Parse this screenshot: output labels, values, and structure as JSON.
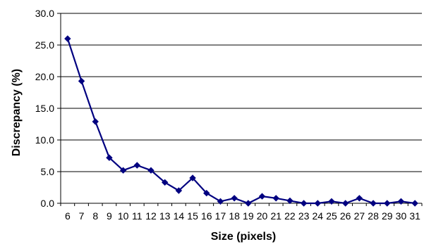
{
  "chart_data": {
    "type": "line",
    "xlabel": "Size (pixels)",
    "ylabel": "Discrepancy (%)",
    "ylim": [
      0,
      30
    ],
    "y_ticks": [
      "0.0",
      "5.0",
      "10.0",
      "15.0",
      "20.0",
      "25.0",
      "30.0"
    ],
    "categories": [
      "6",
      "7",
      "8",
      "9",
      "10",
      "11",
      "12",
      "13",
      "14",
      "15",
      "16",
      "17",
      "18",
      "19",
      "20",
      "21",
      "22",
      "23",
      "24",
      "25",
      "26",
      "27",
      "28",
      "29",
      "30",
      "31"
    ],
    "series": [
      {
        "values": [
          26.0,
          19.3,
          12.9,
          7.2,
          5.2,
          6.0,
          5.2,
          3.3,
          2.0,
          4.0,
          1.6,
          0.3,
          0.8,
          0.0,
          1.1,
          0.8,
          0.4,
          0.0,
          0.0,
          0.3,
          0.0,
          0.8,
          0.0,
          0.0,
          0.3,
          0.0
        ],
        "color": "#000080"
      }
    ],
    "grid": "horizontal",
    "legend": "none"
  }
}
